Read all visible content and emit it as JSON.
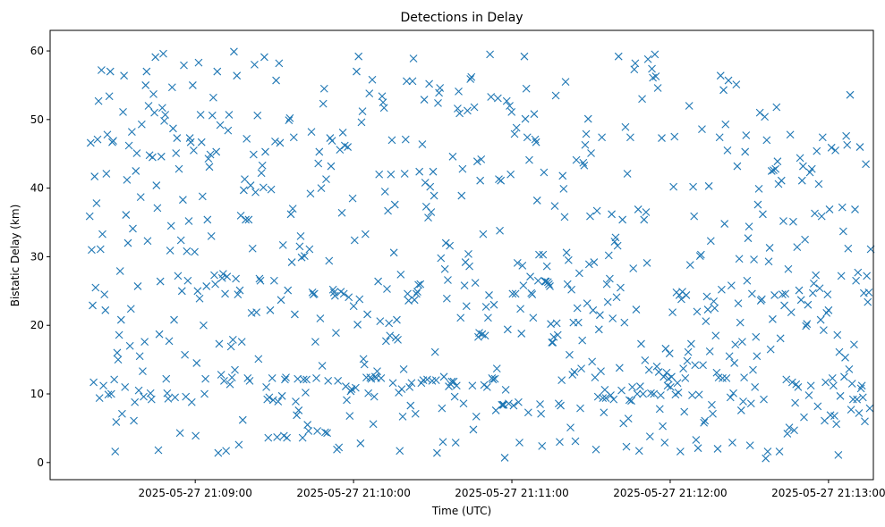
{
  "chart_data": {
    "type": "scatter",
    "title": "Detections in Delay",
    "xlabel": "Time (UTC)",
    "ylabel": "Bistatic Delay (km)",
    "x_axis_type": "datetime",
    "xlim": [
      "2025-05-27 21:08:05",
      "2025-05-27 21:13:17"
    ],
    "ylim": [
      -2.5,
      63
    ],
    "x_ticks": [
      "2025-05-27 21:09:00",
      "2025-05-27 21:10:00",
      "2025-05-27 21:11:00",
      "2025-05-27 21:12:00",
      "2025-05-27 21:13:00"
    ],
    "y_ticks": [
      0,
      10,
      20,
      30,
      40,
      50,
      60
    ],
    "grid": false,
    "marker": "x",
    "color": "#1f77b4",
    "x_start": "2025-05-27 21:08:20",
    "x_end": "2025-05-27 21:13:16",
    "y": [
      35.9,
      46.6,
      31.0,
      22.9,
      11.7,
      41.7,
      25.5,
      37.8,
      47.1,
      52.7,
      9.4,
      31.1,
      57.2,
      33.3,
      11.2,
      24.5,
      22.2,
      42.1,
      47.8,
      9.9,
      53.4,
      57.0,
      10.0,
      46.7,
      46.9,
      12.1,
      1.6,
      5.9,
      16.0,
      15.0,
      18.6,
      27.9,
      20.8,
      7.1,
      51.1,
      56.4,
      11.0,
      36.1,
      41.2,
      32.0,
      46.2,
      17.0,
      22.4,
      48.2,
      34.1,
      6.1,
      8.8,
      42.5,
      45.1,
      25.7,
      10.5,
      15.5,
      38.7,
      49.3,
      13.3,
      9.6,
      17.6,
      55.0,
      57.0,
      32.3,
      52.0,
      44.8,
      10.1,
      9.2,
      44.5,
      53.7,
      51.0,
      59.1,
      40.4,
      37.1,
      1.8,
      18.7,
      26.4,
      44.6,
      51.7,
      59.6,
      49.8,
      50.7,
      12.2,
      10.1,
      9.3,
      17.7,
      30.9,
      34.5,
      54.7,
      48.7,
      20.8,
      9.5,
      45.1,
      47.3,
      27.2,
      42.8,
      4.3,
      32.4,
      25.0,
      38.3,
      57.9,
      15.7,
      9.6,
      30.8,
      26.5,
      35.2,
      47.3,
      46.7,
      8.8,
      55.0,
      45.5,
      30.7,
      3.9,
      14.5,
      25.0,
      58.3,
      23.9,
      50.7,
      46.7,
      38.8,
      20.0,
      10.0,
      12.2,
      25.7,
      35.4,
      44.3,
      43.1,
      44.9,
      33.0,
      50.6,
      53.2,
      27.3,
      26.0,
      45.3,
      57.0,
      1.4,
      17.3,
      49.2,
      12.8,
      26.9,
      27.5,
      11.9,
      24.6,
      1.7,
      27.1,
      48.4,
      50.7,
      11.4,
      16.9,
      12.4,
      17.9,
      59.9,
      13.5,
      26.8,
      56.4,
      24.5,
      2.6,
      25.1,
      36.0,
      17.6,
      6.2,
      39.7,
      41.3,
      35.4,
      47.2,
      12.3,
      35.4,
      11.9,
      40.4,
      21.8,
      31.2,
      44.9,
      58.0,
      39.4,
      21.9,
      50.6,
      15.1,
      26.8,
      26.5,
      42.2,
      43.3,
      40.1,
      59.1,
      45.3,
      11.0,
      9.2,
      3.6,
      9.5,
      22.2,
      39.8,
      12.3,
      9.1,
      26.5,
      46.8,
      55.7,
      3.7,
      8.9,
      58.2,
      46.6,
      23.7,
      9.7,
      31.7,
      3.9,
      12.1,
      12.4,
      3.6,
      25.1,
      49.9,
      50.2,
      36.2,
      29.2,
      37.0,
      47.4,
      21.6,
      8.9,
      6.9,
      12.2,
      7.6,
      31.5,
      33.0,
      29.9,
      3.6,
      12.1,
      30.1,
      10.2,
      12.1,
      5.5,
      4.6,
      31.1,
      39.2,
      48.2,
      24.8,
      24.5,
      24.6,
      17.6,
      12.3,
      4.6,
      43.6,
      45.3,
      21.0,
      40.0,
      14.1,
      52.3,
      54.5,
      4.4,
      41.3,
      4.3,
      11.9,
      29.4,
      47.3,
      43.2,
      46.9,
      25.2,
      24.8,
      24.3,
      18.9,
      1.9,
      11.9,
      2.2,
      45.6,
      24.9,
      36.4,
      48.1,
      24.6,
      46.2,
      11.1,
      9.1,
      46.0,
      24.1,
      6.8,
      10.4,
      10.7,
      38.5,
      22.8,
      32.4,
      10.9,
      57.0,
      20.1,
      59.2,
      23.8,
      2.8,
      49.6,
      51.2,
      15.1,
      14.3,
      33.3,
      12.4,
      21.6,
      10.1,
      53.8,
      12.4,
      12.2,
      55.8,
      5.6,
      9.6,
      12.5,
      12.3,
      13.3,
      26.4,
      42.0,
      20.6,
      12.3,
      53.4,
      52.5,
      51.7,
      39.5,
      17.7,
      25.3,
      36.7,
      20.3,
      18.5,
      42.0,
      47.0,
      11.6,
      30.6,
      37.6,
      18.2,
      20.8,
      17.9,
      10.2,
      1.7,
      27.4,
      10.7,
      6.7,
      13.6,
      42.1,
      47.1,
      55.6,
      24.6,
      23.6,
      11.0,
      8.3,
      11.6,
      55.6,
      58.9,
      23.7,
      7.1,
      24.6,
      24.9,
      25.9,
      42.4,
      26.0,
      11.6,
      46.4,
      12.0,
      52.9,
      40.8,
      37.3,
      12.1,
      35.7,
      55.2,
      40.2,
      36.5,
      11.9,
      42.4,
      38.9,
      16.1,
      12.0,
      1.4,
      52.4,
      53.9,
      54.6,
      29.8,
      7.9,
      3.0,
      12.5,
      28.2,
      32.0,
      23.9,
      26.6,
      11.1,
      31.6,
      11.4,
      11.8,
      44.6,
      11.8,
      9.6,
      2.9,
      11.2,
      51.6,
      54.1,
      50.9,
      21.1,
      38.9,
      42.8,
      8.6,
      25.8,
      29.2,
      22.8,
      51.3,
      30.4,
      28.6,
      55.9,
      56.2,
      11.2,
      4.8,
      51.8,
      26.2,
      6.7,
      43.9,
      18.3,
      18.9,
      41.1,
      44.2,
      18.7,
      33.3,
      11.3,
      18.5,
      22.7,
      11.0,
      21.1,
      24.4,
      59.5,
      53.3,
      12.3,
      12.1,
      23.0,
      12.2,
      7.6,
      13.7,
      53.1,
      41.3,
      33.8,
      41.1,
      8.4,
      8.4,
      8.4,
      0.7,
      10.6,
      52.7,
      19.4,
      8.6,
      52.0,
      42.0,
      51.1,
      24.6,
      8.3,
      47.9,
      24.6,
      48.8,
      29.1,
      8.8,
      2.9,
      22.4,
      18.8,
      28.7,
      25.8,
      59.2,
      50.1,
      54.5,
      47.4,
      7.3,
      44.1,
      27.1,
      24.7,
      24.5,
      21.1,
      50.8,
      47.1,
      46.7,
      38.2,
      26.5,
      30.3,
      8.5,
      7.1,
      2.4,
      30.3,
      42.3,
      26.4,
      26.4,
      28.6,
      26.3,
      26.0,
      25.7,
      20.2,
      17.5,
      17.5,
      18.3,
      37.4,
      53.5,
      20.3,
      18.6,
      8.6,
      3.0,
      8.3,
      12.0,
      41.8,
      39.9,
      35.8,
      55.5,
      30.6,
      26.0,
      29.5,
      15.7,
      5.1,
      25.2,
      12.8,
      20.4,
      13.2,
      3.1,
      44.1,
      22.5,
      20.4,
      27.6,
      7.9,
      13.7,
      17.8,
      43.7,
      43.3,
      46.3,
      47.9,
      23.2,
      50.1,
      28.9,
      35.9,
      45.1,
      14.7,
      22.2,
      29.2,
      12.4,
      1.9,
      36.7,
      9.6,
      19.4,
      21.5,
      13.3,
      47.4,
      9.4,
      7.3,
      10.6,
      9.4,
      26.0,
      23.4,
      30.2,
      26.8,
      9.8,
      36.2,
      21.0,
      9.2,
      32.2,
      32.8,
      24.1,
      31.6,
      59.2,
      13.8,
      25.5,
      10.5,
      35.4,
      5.7,
      20.4,
      48.9,
      2.3,
      42.1,
      6.4,
      9.1,
      47.4,
      9.0,
      11.0,
      28.3,
      57.3,
      58.2,
      22.3,
      10.0,
      36.9,
      1.7,
      11.1,
      17.3,
      53.0,
      10.0,
      35.4,
      14.9,
      36.5,
      29.1,
      58.8,
      13.5,
      3.8,
      10.1,
      57.4,
      56.1,
      10.0,
      59.5,
      56.3,
      14.0,
      54.6,
      13.2,
      7.8,
      9.8,
      47.3,
      5.3,
      12.5,
      2.9,
      16.6,
      13.1,
      11.2,
      12.2,
      15.9,
      11.0,
      12.5,
      21.9,
      40.2,
      47.5,
      9.9,
      24.8,
      11.6,
      10.2,
      24.4,
      1.6,
      23.8,
      24.9,
      13.7,
      7.4,
      12.3,
      24.4,
      14.8,
      16.1,
      52.0,
      28.8,
      17.3,
      9.8,
      40.2,
      35.9,
      14.2,
      3.3,
      22.0,
      2.1,
      9.9,
      30.1,
      30.3,
      48.6,
      14.2,
      5.8,
      6.1,
      20.6,
      24.2,
      22.3,
      40.3,
      16.2,
      32.3,
      8.4,
      7.1,
      23.5,
      22.5,
      18.5,
      13.1,
      2.0,
      12.4,
      47.4,
      56.4,
      25.2,
      12.3,
      54.3,
      34.8,
      49.3,
      12.3,
      45.5,
      55.7,
      15.5,
      9.5,
      25.8,
      2.9,
      10.1,
      14.5,
      17.2,
      55.1,
      43.2,
      23.2,
      29.7,
      20.4,
      7.6,
      17.6,
      8.9,
      12.4,
      45.3,
      47.7,
      26.5,
      32.7,
      34.4,
      2.5,
      8.6,
      24.6,
      13.5,
      29.6,
      11.0,
      18.3,
      15.5,
      37.6,
      39.9,
      51.0,
      23.6,
      23.8,
      36.2,
      9.2,
      50.4,
      0.6,
      47.0,
      1.6,
      29.3,
      31.3,
      16.5,
      42.5,
      20.9,
      42.6,
      24.4,
      42.8,
      51.8,
      43.9,
      40.6,
      1.6,
      18.1,
      41.1,
      24.5,
      35.2,
      22.9,
      24.6,
      12.1,
      4.2,
      28.2,
      5.1,
      47.8,
      21.9,
      11.7,
      35.1,
      4.7,
      8.7,
      11.4,
      31.4,
      11.0,
      25.1,
      44.4,
      23.7,
      41.1,
      43.2,
      6.6,
      32.5,
      19.9,
      20.2,
      23.0,
      9.8,
      42.3,
      11.2,
      42.8,
      24.7,
      26.1,
      36.3,
      27.3,
      45.4,
      8.2,
      40.6,
      25.4,
      20.8,
      35.9,
      47.4,
      19.3,
      6.1,
      11.7,
      21.8,
      24.5,
      22.2,
      36.9,
      6.9,
      45.9,
      12.3,
      11.2,
      6.8,
      45.5,
      5.6,
      18.6,
      1.1,
      16.1,
      9.7,
      27.2,
      37.2,
      33.7,
      12.5,
      15.3,
      47.6,
      46.3,
      31.2,
      13.6,
      53.6,
      7.7,
      11.5,
      9.2,
      17.2,
      36.9,
      26.5,
      9.2,
      27.7,
      7.2,
      46.0,
      10.8,
      11.2,
      9.5,
      24.7,
      6.0,
      43.5,
      27.2,
      23.4,
      24.8,
      7.9,
      31.1
    ]
  }
}
